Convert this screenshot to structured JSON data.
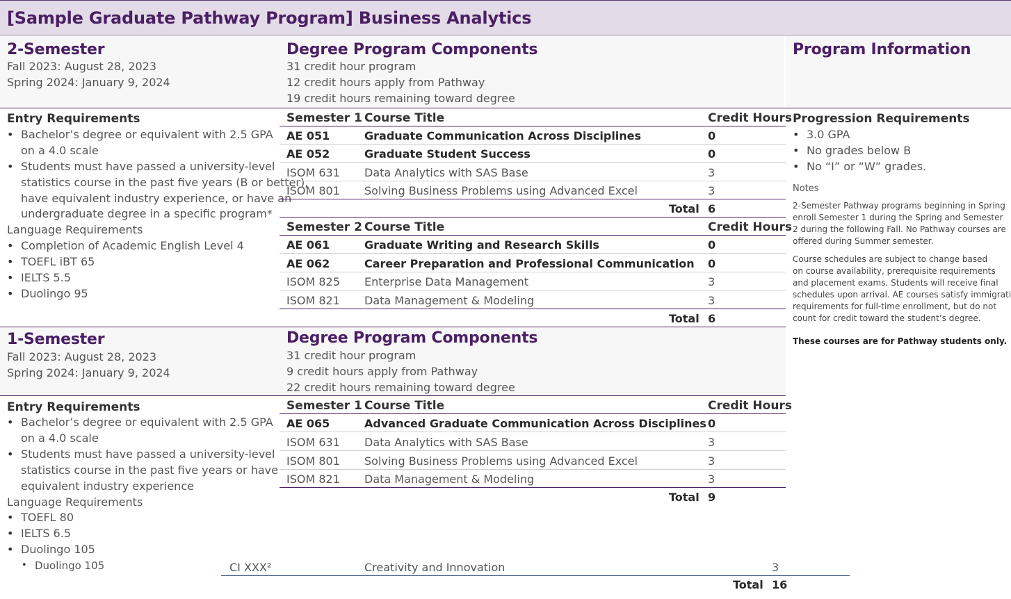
{
  "header": {
    "title": "[Sample Graduate Pathway Program] Business Analytics"
  },
  "two_semester": {
    "title": "2-Semester",
    "dates": [
      "Fall 2023: August 28, 2023",
      "Spring 2024: January 9, 2024"
    ],
    "components": {
      "title": "Degree Program Components",
      "lines": [
        "31 credit hour program",
        "12 credit hours apply from Pathway",
        "19 credit hours remaining toward degree"
      ]
    },
    "entry": {
      "title": "Entry Requirements",
      "bullet1": [
        "Bachelor’s degree or equivalent with 2.5 GPA",
        "on a 4.0 scale"
      ],
      "bullet2": [
        "Students must have passed a university-level",
        "statistics course in the past five years (B or better),",
        "have equivalent industry experience, or have an",
        "undergraduate degree in a specific program*"
      ]
    },
    "language": {
      "title": "Language Requirements",
      "items": [
        "Completion of Academic English Level 4",
        "TOEFL iBT 65",
        "IELTS 5.5",
        "Duolingo 95"
      ]
    },
    "semester1": {
      "headers": [
        "Semester 1",
        "Course Title",
        "Credit Hours"
      ],
      "rows": [
        {
          "code": "AE 051",
          "title": "Graduate Communication Across Disciplines",
          "credits": "0"
        },
        {
          "code": "AE 052",
          "title": "Graduate Student Success",
          "credits": "0"
        },
        {
          "code": "ISOM 631",
          "title": "Data Analytics with SAS Base",
          "credits": "3"
        },
        {
          "code": "ISOM 801",
          "title": "Solving Business Problems using Advanced Excel",
          "credits": "3"
        }
      ],
      "total_label": "Total",
      "total": "6"
    },
    "semester2": {
      "headers": [
        "Semester 2",
        "Course Title",
        "Credit Hours"
      ],
      "rows": [
        {
          "code": "AE 061",
          "title": "Graduate Writing and Research Skills",
          "credits": "0"
        },
        {
          "code": "AE 062",
          "title": "Career Preparation and Professional Communication",
          "credits": "0"
        },
        {
          "code": "ISOM 825",
          "title": "Enterprise Data Management",
          "credits": "3"
        },
        {
          "code": "ISOM 821",
          "title": "Data Management & Modeling",
          "credits": "3"
        }
      ],
      "total_label": "Total",
      "total": "6"
    }
  },
  "one_semester": {
    "title": "1-Semester",
    "dates": [
      "Fall 2023: August 28, 2023",
      "Spring 2024: January 9, 2024"
    ],
    "components": {
      "title": "Degree Program Components",
      "lines": [
        "31 credit hour program",
        "9 credit hours apply from Pathway",
        "22 credit hours remaining toward degree"
      ]
    },
    "entry": {
      "title": "Entry Requirements",
      "bullet1": [
        "Bachelor’s degree or equivalent with 2.5 GPA",
        "on a 4.0 scale"
      ],
      "bullet2": [
        "Students must have passed a university-level",
        "statistics course in the past five years or have",
        "equivalent industry experience"
      ]
    },
    "language": {
      "title": "Language Requirements",
      "items": [
        "TOEFL 80",
        "IELTS 6.5",
        "Duolingo 105"
      ],
      "overflow_item": "Duolingo 105"
    },
    "semester1": {
      "headers": [
        "Semester 1",
        "Course Title",
        "Credit Hours"
      ],
      "rows": [
        {
          "code": "AE 065",
          "title": "Advanced Graduate Communication Across Disciplines",
          "credits": "0"
        },
        {
          "code": "ISOM 631",
          "title": "Data Analytics with SAS Base",
          "credits": "3"
        },
        {
          "code": "ISOM 801",
          "title": "Solving Business Problems using Advanced Excel",
          "credits": "3"
        },
        {
          "code": "ISOM 821",
          "title": "Data Management & Modeling",
          "credits": "3"
        }
      ],
      "total_label": "Total",
      "total": "9"
    },
    "stray_row": {
      "code": "CI XXX²",
      "title": "Creativity and Innovation",
      "credits": "3",
      "total_label": "Total",
      "total": "16"
    }
  },
  "program_info": {
    "title": "Program Information",
    "progression_title": "Progression Requirements",
    "progression_items": [
      "3.0 GPA",
      "No grades below B",
      "No “I” or “W” grades."
    ],
    "notes_label": "Notes",
    "note1": [
      "2-Semester Pathway programs beginning in Spring",
      "enroll Semester 1 during the Spring and Semester",
      "2 during the following Fall. No Pathway courses are",
      "offered during Summer semester."
    ],
    "note2": [
      "Course schedules are subject to change based",
      "on course availability, prerequisite requirements",
      "and placement exams. Students will receive final",
      "schedules upon arrival. AE courses satisfy immigration",
      "requirements for full-time enrollment, but do not",
      "count for credit toward the student’s degree."
    ],
    "note3": "These courses are for Pathway students only."
  },
  "colors": {
    "accent": "#4b1f64",
    "header_bg": "#e3dce8",
    "band_bg": "#f7f7f7"
  }
}
